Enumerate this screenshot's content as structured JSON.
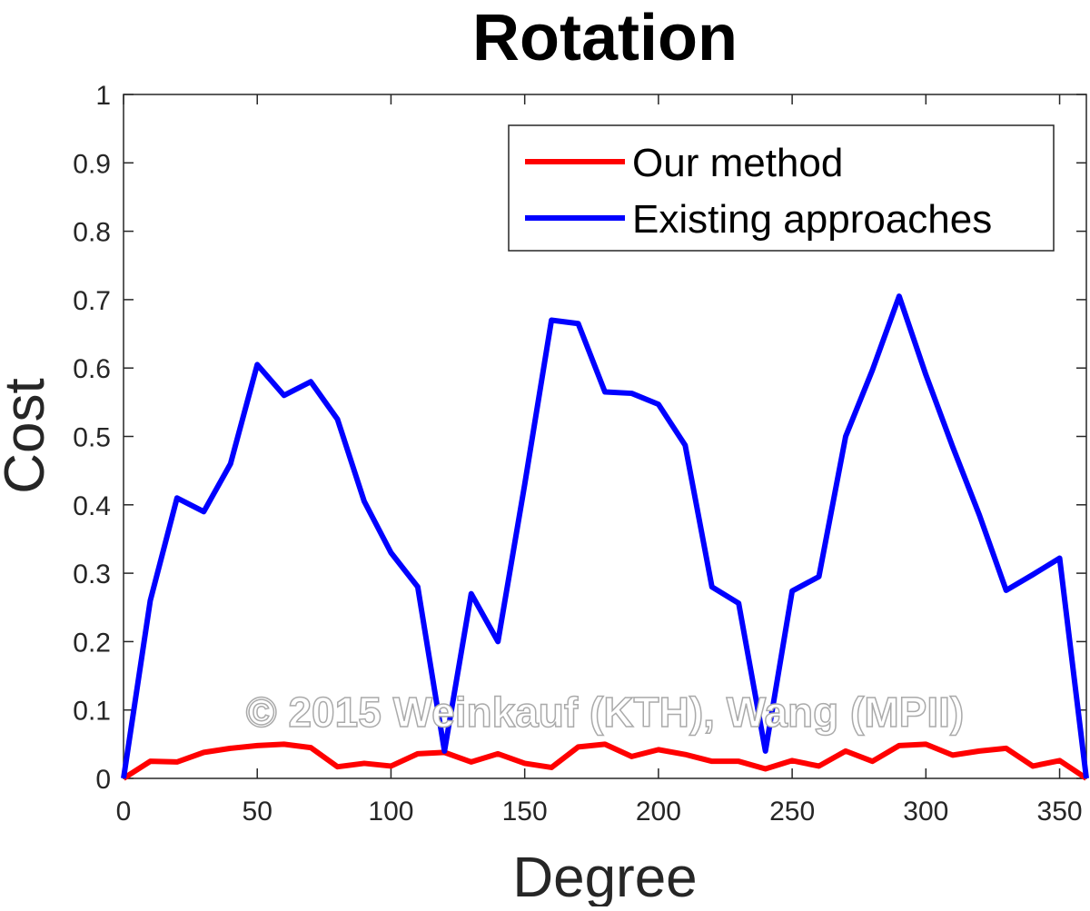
{
  "chart_data": {
    "type": "line",
    "title": "Rotation",
    "xlabel": "Degree",
    "ylabel": "Cost",
    "xlim": [
      0,
      360
    ],
    "ylim": [
      0,
      1
    ],
    "xticks": [
      0,
      50,
      100,
      150,
      200,
      250,
      300,
      350
    ],
    "yticks": [
      0,
      0.1,
      0.2,
      0.3,
      0.4,
      0.5,
      0.6,
      0.7,
      0.8,
      0.9,
      1
    ],
    "ytick_labels": [
      "0",
      "0.1",
      "0.2",
      "0.3",
      "0.4",
      "0.5",
      "0.6",
      "0.7",
      "0.8",
      "0.9",
      "1"
    ],
    "grid": false,
    "legend_position": "top-right",
    "x": [
      0,
      10,
      20,
      30,
      40,
      50,
      60,
      70,
      80,
      90,
      100,
      110,
      120,
      130,
      140,
      150,
      160,
      170,
      180,
      190,
      200,
      210,
      220,
      230,
      240,
      250,
      260,
      270,
      280,
      290,
      300,
      310,
      320,
      330,
      340,
      350,
      360
    ],
    "series": [
      {
        "name": "Our method",
        "color": "#ff0000",
        "values": [
          0,
          0.025,
          0.024,
          0.038,
          0.044,
          0.048,
          0.05,
          0.045,
          0.017,
          0.022,
          0.018,
          0.036,
          0.038,
          0.024,
          0.036,
          0.022,
          0.016,
          0.046,
          0.05,
          0.032,
          0.042,
          0.035,
          0.025,
          0.025,
          0.014,
          0.026,
          0.018,
          0.04,
          0.025,
          0.048,
          0.05,
          0.034,
          0.04,
          0.044,
          0.018,
          0.026,
          0
        ]
      },
      {
        "name": "Existing approaches",
        "color": "#0000ff",
        "values": [
          0,
          0.26,
          0.41,
          0.39,
          0.46,
          0.605,
          0.56,
          0.58,
          0.525,
          0.405,
          0.33,
          0.28,
          0.04,
          0.27,
          0.2,
          0.43,
          0.67,
          0.665,
          0.565,
          0.563,
          0.547,
          0.487,
          0.28,
          0.256,
          0.04,
          0.274,
          0.295,
          0.5,
          0.597,
          0.705,
          0.59,
          0.485,
          0.385,
          0.275,
          0.298,
          0.322,
          0
        ]
      }
    ]
  },
  "watermark": "© 2015 Weinkauf (KTH), Wang (MPII)"
}
